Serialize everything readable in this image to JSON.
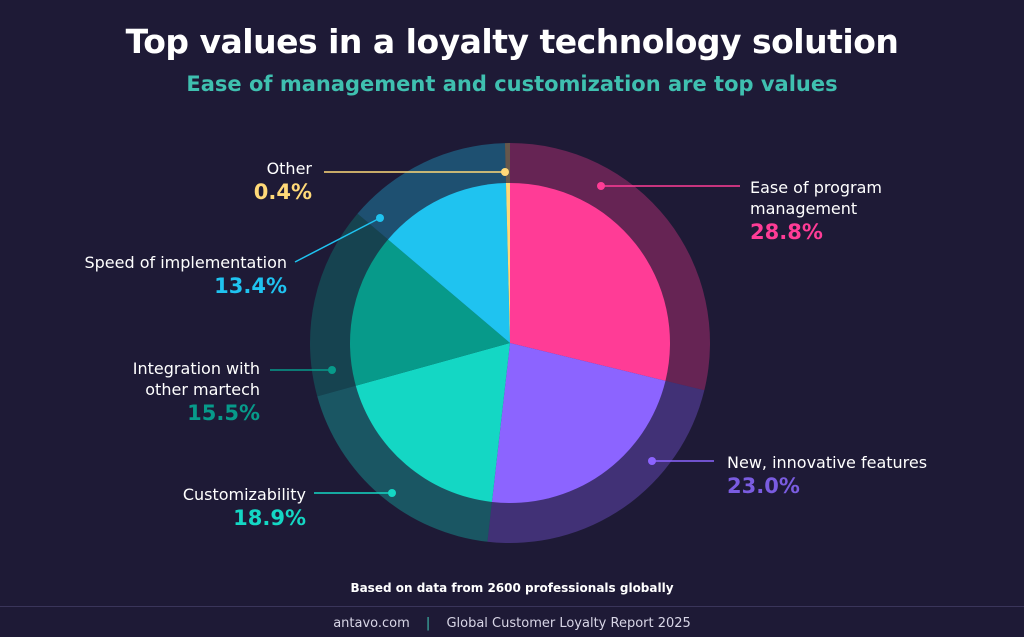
{
  "header": {
    "title": "Top values in a loyalty technology solution",
    "subtitle": "Ease of management and customization are top values"
  },
  "chart_data": {
    "type": "pie",
    "title": "Top values in a loyalty technology solution",
    "subtitle": "Ease of management and customization are top values",
    "slices": [
      {
        "label": "Ease of program management",
        "value": 28.8,
        "pct_text": "28.8%",
        "color": "#ff3c96"
      },
      {
        "label": "New, innovative features",
        "value": 23.0,
        "pct_text": "23.0%",
        "color": "#8c64ff"
      },
      {
        "label": "Customizability",
        "value": 18.9,
        "pct_text": "18.9%",
        "color": "#14d7c4"
      },
      {
        "label": "Integration with other martech",
        "value": 15.5,
        "pct_text": "15.5%",
        "color": "#079a8a"
      },
      {
        "label": "Speed of implementation",
        "value": 13.4,
        "pct_text": "13.4%",
        "color": "#1fc3f0"
      },
      {
        "label": "Other",
        "value": 0.4,
        "pct_text": "0.4%",
        "color": "#ffd978"
      }
    ]
  },
  "labels": {
    "ease_line1": "Ease of program",
    "ease_line2": "management",
    "new_features": "New, innovative features",
    "customizability": "Customizability",
    "integration_line1": "Integration with",
    "integration_line2": "other martech",
    "speed": "Speed of implementation",
    "other": "Other"
  },
  "footnote": "Based on data from 2600 professionals globally",
  "footer": {
    "site": "antavo.com",
    "separator": "|",
    "report": "Global Customer Loyalty Report 2025"
  }
}
